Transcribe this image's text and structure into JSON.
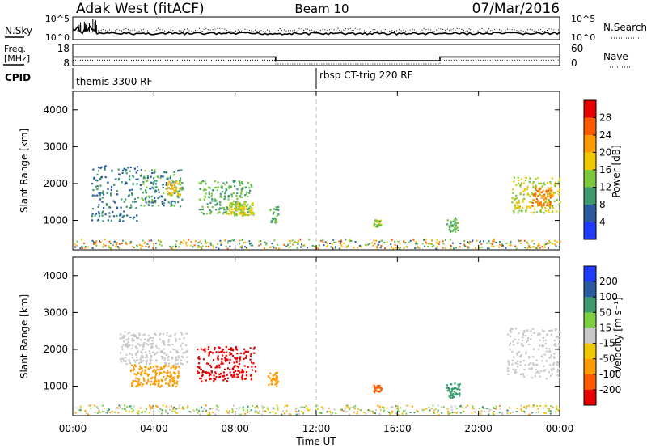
{
  "header": {
    "station": "Adak West (fitACF)",
    "beam": "Beam 10",
    "date": "07/Mar/2016"
  },
  "sky_panel": {
    "left_label": "N.Sky",
    "right_label": "N.Search",
    "left_ticks": [
      "10^5",
      "10^0"
    ],
    "right_ticks": [
      "10^5",
      "10^0"
    ]
  },
  "freq_panel": {
    "left_label_line1": "Freq.",
    "left_label_line2": "[MHz]",
    "left_ticks": [
      "18",
      "8"
    ],
    "right_label": "Nave",
    "right_ticks": [
      "60",
      "0"
    ]
  },
  "cpid_panel": {
    "label": "CPID",
    "mode_1": "themis 3300 RF",
    "mode_2": "rbsp CT-trig 220 RF"
  },
  "power_panel": {
    "ylabel": "Slant Range [km]",
    "colorbar_label": "Power [dB]",
    "colorbar_ticks": [
      "28",
      "24",
      "20",
      "16",
      "12",
      "8",
      "4"
    ],
    "colorbar_colors": [
      "#e60000",
      "#ff5a00",
      "#ff9900",
      "#f0c800",
      "#7cc83c",
      "#3c9a6e",
      "#2a5aa0",
      "#1e3cff"
    ]
  },
  "velocity_panel": {
    "ylabel": "Slant Range [km]",
    "colorbar_label": "Velocity [m s⁻¹]",
    "colorbar_ticks": [
      "200",
      "100",
      "50",
      "15",
      "-15",
      "-50",
      "-100",
      "-200"
    ],
    "colorbar_colors": [
      "#1e3cff",
      "#2a5aa0",
      "#3c9a6e",
      "#7cd040",
      "#c8c8c8",
      "#f0c800",
      "#ff9900",
      "#ff5a00",
      "#e60000"
    ]
  },
  "xaxis": {
    "label": "Time UT",
    "ticks": [
      "00:00",
      "04:00",
      "08:00",
      "12:00",
      "16:00",
      "20:00",
      "00:00"
    ]
  },
  "chart_data": {
    "type": "heatmap",
    "title": "Adak West (fitACF)  Beam 10  07/Mar/2016",
    "xlabel": "Time UT",
    "ylabel": "Slant Range [km]",
    "x_range_hours": [
      0,
      24
    ],
    "y_range_km": [
      200,
      4500
    ],
    "y_ticks_km": [
      1000,
      2000,
      3000,
      4000
    ],
    "frequency_mhz": [
      {
        "start_h": 0,
        "end_h": 10,
        "value": 11.8
      },
      {
        "start_h": 10,
        "end_h": 18.1,
        "value": 9.5
      },
      {
        "start_h": 18.1,
        "end_h": 24,
        "value": 11.8
      }
    ],
    "cpid_change_hour": 12,
    "power_scatter_regions": [
      {
        "t_start": 0.9,
        "t_end": 3.2,
        "r_min": 1000,
        "r_max": 2500,
        "value_db": 8
      },
      {
        "t_start": 3.3,
        "t_end": 5.4,
        "r_min": 1400,
        "r_max": 2400,
        "value_db": 10
      },
      {
        "t_start": 4.6,
        "t_end": 5.3,
        "r_min": 1700,
        "r_max": 2100,
        "value_db": 18
      },
      {
        "t_start": 6.2,
        "t_end": 8.8,
        "r_min": 1200,
        "r_max": 2100,
        "value_db": 12
      },
      {
        "t_start": 7.6,
        "t_end": 8.9,
        "r_min": 1150,
        "r_max": 1500,
        "value_db": 16
      },
      {
        "t_start": 9.7,
        "t_end": 10.1,
        "r_min": 950,
        "r_max": 1400,
        "value_db": 12
      },
      {
        "t_start": 14.8,
        "t_end": 15.2,
        "r_min": 850,
        "r_max": 1050,
        "value_db": 14
      },
      {
        "t_start": 18.4,
        "t_end": 19.0,
        "r_min": 700,
        "r_max": 1100,
        "value_db": 12
      },
      {
        "t_start": 21.6,
        "t_end": 24.0,
        "r_min": 1200,
        "r_max": 2200,
        "value_db": 16
      },
      {
        "t_start": 22.6,
        "t_end": 23.6,
        "r_min": 1400,
        "r_max": 1900,
        "value_db": 24
      }
    ],
    "velocity_scatter_regions": [
      {
        "t_start": 2.3,
        "t_end": 5.6,
        "r_min": 1600,
        "r_max": 2500,
        "value_ms": 0
      },
      {
        "t_start": 2.8,
        "t_end": 5.2,
        "r_min": 1000,
        "r_max": 1600,
        "value_ms": -60
      },
      {
        "t_start": 6.1,
        "t_end": 9.0,
        "r_min": 1150,
        "r_max": 2100,
        "value_ms": -220
      },
      {
        "t_start": 9.6,
        "t_end": 10.1,
        "r_min": 950,
        "r_max": 1400,
        "value_ms": -60
      },
      {
        "t_start": 14.8,
        "t_end": 15.2,
        "r_min": 850,
        "r_max": 1050,
        "value_ms": -110
      },
      {
        "t_start": 18.4,
        "t_end": 19.1,
        "r_min": 700,
        "r_max": 1100,
        "value_ms": 60
      },
      {
        "t_start": 21.4,
        "t_end": 24.0,
        "r_min": 1200,
        "r_max": 2600,
        "value_ms": 0
      }
    ]
  }
}
